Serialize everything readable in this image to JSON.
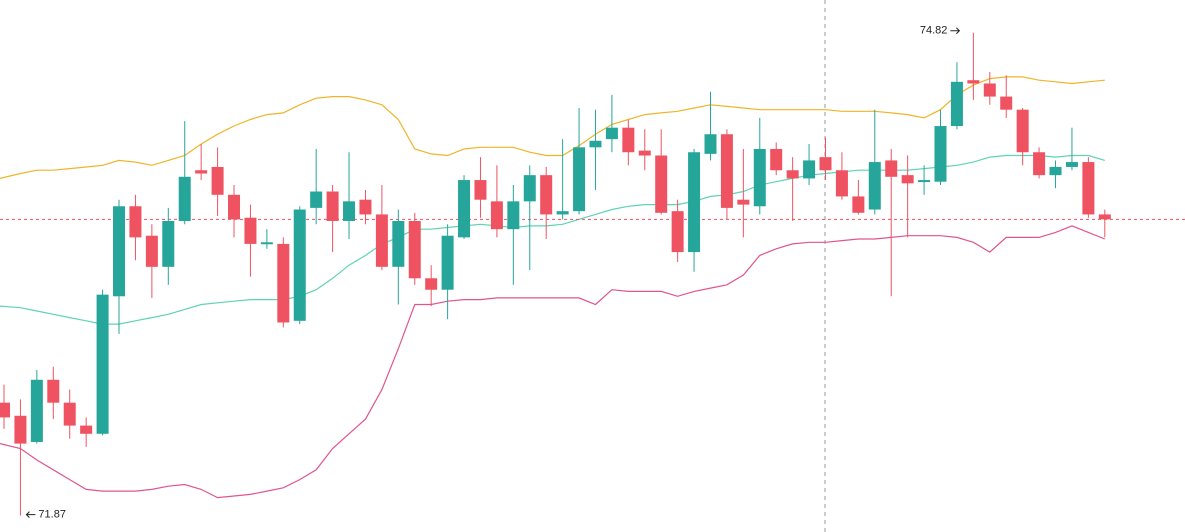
{
  "chart_data": {
    "type": "candlestick",
    "ylim": [
      71.77,
      75.02
    ],
    "up_color": "#26a69a",
    "down_color": "#ef5361",
    "open": [
      72.56,
      72.48,
      72.32,
      72.7,
      72.56,
      72.42,
      72.37,
      73.21,
      73.76,
      73.58,
      73.39,
      73.67,
      73.98,
      74.0,
      73.83,
      73.69,
      73.53,
      73.53,
      73.06,
      73.75,
      73.85,
      73.67,
      73.8,
      73.71,
      73.39,
      73.67,
      73.32,
      73.25,
      73.57,
      73.92,
      73.79,
      73.62,
      73.79,
      73.95,
      73.71,
      73.73,
      74.12,
      74.17,
      74.24,
      74.1,
      74.07,
      73.73,
      73.48,
      74.08,
      74.2,
      73.8,
      73.76,
      74.11,
      73.98,
      73.93,
      74.06,
      73.98,
      73.82,
      73.74,
      74.04,
      73.95,
      73.91,
      73.91,
      74.25,
      74.53,
      74.51,
      74.43,
      74.35,
      74.09,
      73.95,
      74.0,
      74.03,
      73.71
    ],
    "high": [
      72.67,
      72.58,
      72.76,
      72.78,
      72.64,
      72.47,
      73.25,
      73.8,
      73.83,
      73.65,
      73.75,
      74.28,
      74.14,
      74.12,
      73.89,
      73.77,
      73.62,
      73.57,
      73.76,
      74.11,
      73.89,
      74.09,
      73.86,
      73.89,
      73.74,
      73.72,
      73.4,
      73.65,
      73.95,
      74.06,
      74.01,
      73.89,
      74.01,
      74.0,
      74.17,
      74.36,
      74.35,
      74.44,
      74.29,
      74.23,
      74.23,
      73.8,
      74.11,
      74.46,
      74.23,
      74.11,
      74.3,
      74.15,
      74.06,
      74.14,
      74.18,
      74.09,
      73.92,
      74.35,
      74.11,
      74.07,
      74.01,
      74.35,
      74.64,
      74.82,
      74.58,
      74.56,
      74.36,
      74.12,
      74.04,
      74.24,
      74.06,
      73.74
    ],
    "low": [
      72.4,
      71.87,
      72.31,
      72.46,
      72.34,
      72.29,
      72.36,
      72.98,
      73.43,
      73.2,
      73.28,
      73.65,
      73.92,
      73.7,
      73.57,
      73.33,
      73.5,
      73.02,
      73.04,
      73.65,
      73.48,
      73.56,
      73.65,
      73.37,
      73.16,
      73.28,
      73.15,
      73.07,
      73.56,
      73.69,
      73.57,
      73.28,
      73.37,
      73.56,
      73.68,
      73.71,
      73.86,
      74.09,
      74.01,
      73.98,
      73.71,
      73.42,
      73.36,
      74.04,
      73.68,
      73.57,
      73.71,
      73.95,
      73.67,
      73.89,
      73.92,
      73.8,
      73.71,
      73.71,
      73.21,
      73.57,
      73.83,
      73.89,
      74.23,
      74.41,
      74.38,
      74.3,
      74.01,
      73.93,
      73.87,
      73.98,
      73.69,
      73.57
    ],
    "close": [
      72.47,
      72.31,
      72.7,
      72.56,
      72.42,
      72.37,
      73.22,
      73.76,
      73.57,
      73.39,
      73.67,
      73.94,
      73.96,
      73.83,
      73.68,
      73.53,
      73.54,
      73.05,
      73.74,
      73.85,
      73.67,
      73.79,
      73.71,
      73.39,
      73.67,
      73.32,
      73.25,
      73.58,
      73.92,
      73.8,
      73.62,
      73.79,
      73.95,
      73.71,
      73.73,
      74.12,
      74.16,
      74.24,
      74.09,
      74.07,
      73.72,
      73.48,
      74.09,
      74.2,
      73.75,
      73.77,
      74.11,
      73.98,
      73.93,
      74.04,
      73.98,
      73.82,
      73.72,
      74.03,
      73.94,
      73.9,
      73.92,
      74.25,
      74.52,
      74.51,
      74.43,
      74.35,
      74.09,
      73.95,
      74.0,
      74.03,
      73.71,
      73.68
    ],
    "bands": [
      {
        "color": "#f0b429",
        "values": [
          73.93,
          73.96,
          73.98,
          73.98,
          73.99,
          74.0,
          74.01,
          74.04,
          74.03,
          74.01,
          74.04,
          74.07,
          74.14,
          74.2,
          74.25,
          74.29,
          74.32,
          74.33,
          74.38,
          74.42,
          74.43,
          74.43,
          74.41,
          74.38,
          74.29,
          74.11,
          74.08,
          74.07,
          74.11,
          74.12,
          74.12,
          74.12,
          74.09,
          74.07,
          74.07,
          74.13,
          74.2,
          74.26,
          74.29,
          74.32,
          74.33,
          74.34,
          74.36,
          74.38,
          74.37,
          74.36,
          74.35,
          74.35,
          74.35,
          74.35,
          74.35,
          74.34,
          74.34,
          74.34,
          74.33,
          74.32,
          74.3,
          74.35,
          74.44,
          74.5,
          74.54,
          74.55,
          74.55,
          74.53,
          74.52,
          74.51,
          74.52,
          74.53
        ]
      },
      {
        "color": "#5fd3b4",
        "values": [
          73.15,
          73.14,
          73.12,
          73.1,
          73.08,
          73.06,
          73.04,
          73.04,
          73.06,
          73.08,
          73.1,
          73.13,
          73.16,
          73.17,
          73.18,
          73.19,
          73.19,
          73.19,
          73.21,
          73.25,
          73.32,
          73.4,
          73.46,
          73.53,
          73.57,
          73.62,
          73.62,
          73.63,
          73.64,
          73.65,
          73.64,
          73.63,
          73.64,
          73.64,
          73.65,
          73.68,
          73.71,
          73.74,
          73.76,
          73.77,
          73.77,
          73.77,
          73.79,
          73.82,
          73.83,
          73.85,
          73.89,
          73.91,
          73.93,
          73.95,
          73.96,
          73.97,
          73.98,
          73.98,
          73.98,
          73.98,
          73.99,
          74.0,
          74.01,
          74.03,
          74.06,
          74.07,
          74.07,
          74.07,
          74.06,
          74.07,
          74.07,
          74.04
        ]
      },
      {
        "color": "#e0558f",
        "values": [
          72.31,
          72.28,
          72.21,
          72.15,
          72.09,
          72.03,
          72.02,
          72.02,
          72.02,
          72.03,
          72.05,
          72.06,
          72.03,
          71.98,
          71.99,
          72.0,
          72.02,
          72.04,
          72.09,
          72.15,
          72.28,
          72.37,
          72.46,
          72.64,
          72.89,
          73.16,
          73.16,
          73.18,
          73.19,
          73.19,
          73.2,
          73.2,
          73.2,
          73.2,
          73.2,
          73.2,
          73.16,
          73.25,
          73.24,
          73.24,
          73.24,
          73.21,
          73.24,
          73.26,
          73.28,
          73.34,
          73.46,
          73.5,
          73.53,
          73.54,
          73.54,
          73.55,
          73.56,
          73.56,
          73.57,
          73.58,
          73.58,
          73.58,
          73.57,
          73.54,
          73.48,
          73.57,
          73.57,
          73.57,
          73.6,
          73.64,
          73.6,
          73.56
        ]
      }
    ]
  }
}
